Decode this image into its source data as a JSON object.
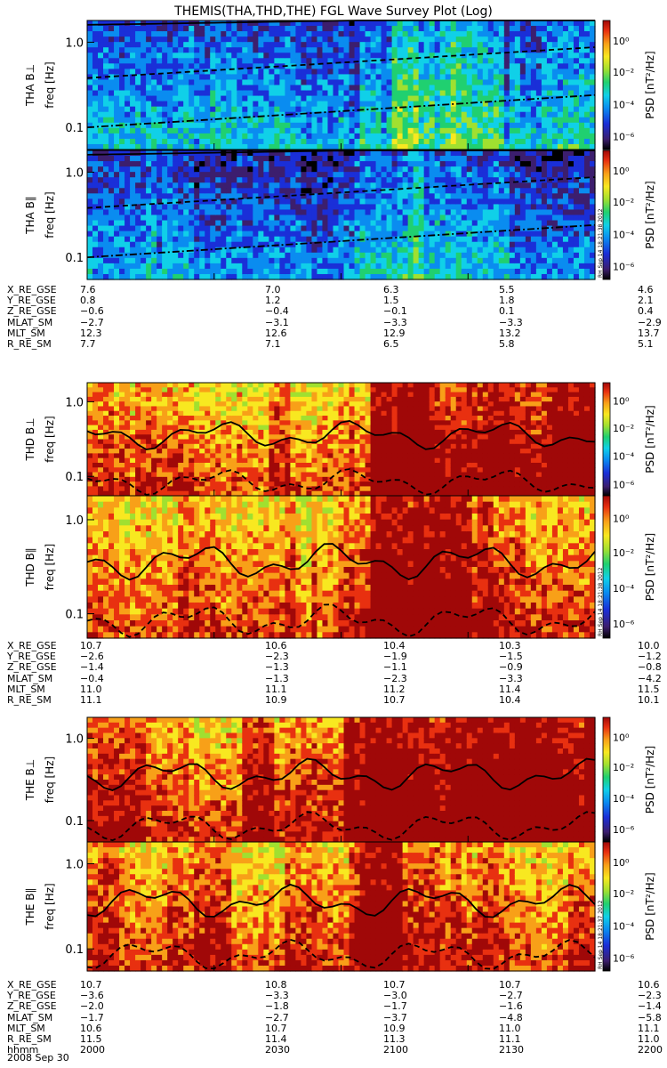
{
  "title": "THEMIS(THA,THD,THE) FGL Wave Survey Plot (Log)",
  "colorbar": {
    "label": "PSD [nT²/Hz]",
    "ticks": [
      "10⁰",
      "10⁻²",
      "10⁻⁴",
      "10⁻⁶"
    ],
    "stamps": [
      "RH Sep 14 18:21:38 2012",
      "RH Sep 14 18:21:38 2012",
      "RH Sep 14 18:21:37 2012"
    ]
  },
  "chart_data": {
    "type": "heatmap",
    "title": "THEMIS(THA,THD,THE) FGL Wave Survey Plot (Log)",
    "x_axis": {
      "unit": "hhmm",
      "range": [
        "2000",
        "2200"
      ],
      "tick_labels": [
        "2000",
        "2030",
        "2100",
        "2130",
        "2200"
      ]
    },
    "y_axis": {
      "label": "freq [Hz]",
      "scale": "log",
      "range": [
        0.055,
        1.8
      ],
      "tick_labels": [
        "1.0",
        "0.1"
      ]
    },
    "color_scale": {
      "label": "PSD [nT²/Hz]",
      "scale": "log",
      "range": [
        "1e-6",
        "1e1"
      ],
      "tick_labels": [
        "10⁰",
        "10⁻²",
        "10⁻⁴",
        "10⁻⁶"
      ],
      "colormap": [
        "#000000",
        "#3c1e6e",
        "#1a2fd8",
        "#0a8cf0",
        "#10d0e8",
        "#20d070",
        "#a0e030",
        "#f8e820",
        "#f8a018",
        "#e83010",
        "#a00808"
      ]
    },
    "panels": [
      {
        "ylabel": "THA B⊥",
        "level": 0.32,
        "hot": [
          0.6,
          0.82
        ]
      },
      {
        "ylabel": "THA B∥",
        "level": 0.28,
        "hot": [
          0.62,
          0.66
        ]
      },
      {
        "ylabel": "THD B⊥",
        "level": 0.82,
        "hot": [
          0.55,
          1.0
        ]
      },
      {
        "ylabel": "THD B∥",
        "level": 0.8,
        "hot": [
          0.55,
          0.8
        ]
      },
      {
        "ylabel": "THE B⊥",
        "level": 0.86,
        "hot": [
          0.5,
          1.0
        ]
      },
      {
        "ylabel": "THE B∥",
        "level": 0.83,
        "hot": [
          0.53,
          0.62
        ]
      }
    ]
  },
  "ephemeris": [
    {
      "rows": [
        {
          "label": "X_RE_GSE",
          "values": [
            "7.6",
            "7.0",
            "6.3",
            "5.5",
            "4.6"
          ]
        },
        {
          "label": "Y_RE_GSE",
          "values": [
            "0.8",
            "1.2",
            "1.5",
            "1.8",
            "2.1"
          ]
        },
        {
          "label": "Z_RE_GSE",
          "values": [
            "−0.6",
            "−0.4",
            "−0.1",
            "0.1",
            "0.4"
          ]
        },
        {
          "label": "MLAT_SM",
          "values": [
            "−2.7",
            "−3.1",
            "−3.3",
            "−3.3",
            "−2.9"
          ]
        },
        {
          "label": "MLT_SM",
          "values": [
            "12.3",
            "12.6",
            "12.9",
            "13.2",
            "13.7"
          ]
        },
        {
          "label": "R_RE_SM",
          "values": [
            "7.7",
            "7.1",
            "6.5",
            "5.8",
            "5.1"
          ]
        }
      ]
    },
    {
      "rows": [
        {
          "label": "X_RE_GSE",
          "values": [
            "10.7",
            "10.6",
            "10.4",
            "10.3",
            "10.0"
          ]
        },
        {
          "label": "Y_RE_GSE",
          "values": [
            "−2.6",
            "−2.3",
            "−1.9",
            "−1.5",
            "−1.2"
          ]
        },
        {
          "label": "Z_RE_GSE",
          "values": [
            "−1.4",
            "−1.3",
            "−1.1",
            "−0.9",
            "−0.8"
          ]
        },
        {
          "label": "MLAT_SM",
          "values": [
            "−0.4",
            "−1.3",
            "−2.3",
            "−3.3",
            "−4.2"
          ]
        },
        {
          "label": "MLT_SM",
          "values": [
            "11.0",
            "11.1",
            "11.2",
            "11.4",
            "11.5"
          ]
        },
        {
          "label": "R_RE_SM",
          "values": [
            "11.1",
            "10.9",
            "10.7",
            "10.4",
            "10.1"
          ]
        }
      ]
    },
    {
      "rows": [
        {
          "label": "X_RE_GSE",
          "values": [
            "10.7",
            "10.8",
            "10.7",
            "10.7",
            "10.6"
          ]
        },
        {
          "label": "Y_RE_GSE",
          "values": [
            "−3.6",
            "−3.3",
            "−3.0",
            "−2.7",
            "−2.3"
          ]
        },
        {
          "label": "Z_RE_GSE",
          "values": [
            "−2.0",
            "−1.8",
            "−1.7",
            "−1.6",
            "−1.4"
          ]
        },
        {
          "label": "MLAT_SM",
          "values": [
            "−1.7",
            "−2.7",
            "−3.7",
            "−4.8",
            "−5.8"
          ]
        },
        {
          "label": "MLT_SM",
          "values": [
            "10.6",
            "10.7",
            "10.9",
            "11.0",
            "11.1"
          ]
        },
        {
          "label": "R_RE_SM",
          "values": [
            "11.5",
            "11.4",
            "11.3",
            "11.1",
            "11.0"
          ]
        },
        {
          "label": "hhmm",
          "values": [
            "2000",
            "2030",
            "2100",
            "2130",
            "2200"
          ]
        }
      ]
    }
  ],
  "date": "2008 Sep 30"
}
